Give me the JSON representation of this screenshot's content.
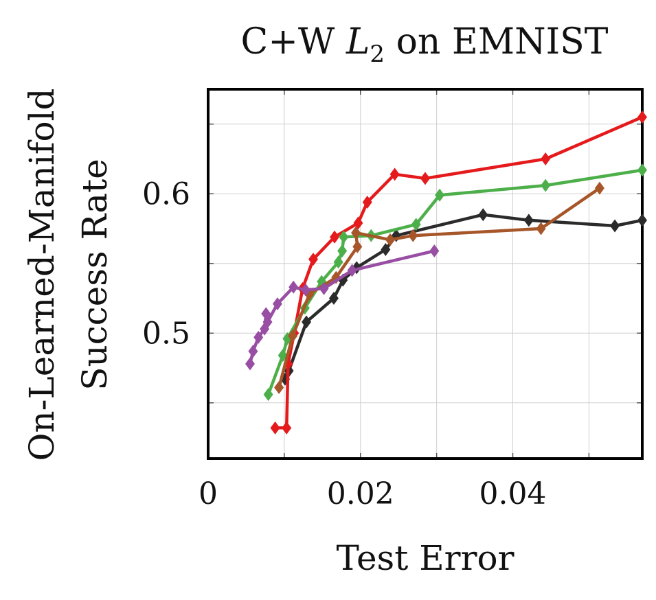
{
  "chart_data": {
    "type": "line",
    "title": "C+W L2 on EMNIST",
    "title_parts": {
      "prefix": "C+W ",
      "var": "L",
      "sub": "2",
      "suffix": " on EMNIST"
    },
    "xlabel": "Test Error",
    "ylabel_lines": [
      "On-Learned-Manifold",
      "Success Rate"
    ],
    "xlim": [
      0,
      0.057
    ],
    "ylim": [
      0.41,
      0.675
    ],
    "x_ticks": [
      {
        "value": 0,
        "label": "0"
      },
      {
        "value": 0.02,
        "label": "0.02"
      },
      {
        "value": 0.04,
        "label": "0.04"
      }
    ],
    "y_ticks": [
      {
        "value": 0.5,
        "label": "0.5"
      },
      {
        "value": 0.6,
        "label": "0.6"
      }
    ],
    "x_grid": [
      0.01,
      0.02,
      0.03,
      0.04,
      0.05
    ],
    "y_grid": [
      0.45,
      0.5,
      0.55,
      0.6,
      0.65
    ],
    "grid": true,
    "marker": "diamond",
    "series": [
      {
        "color": "#2b2b2b",
        "points": [
          [
            0.0101,
            0.467
          ],
          [
            0.0106,
            0.473
          ],
          [
            0.0129,
            0.508
          ],
          [
            0.0165,
            0.525
          ],
          [
            0.0177,
            0.538
          ],
          [
            0.0195,
            0.547
          ],
          [
            0.0233,
            0.56
          ],
          [
            0.0247,
            0.57
          ],
          [
            0.0361,
            0.585
          ],
          [
            0.0421,
            0.581
          ],
          [
            0.0534,
            0.577
          ],
          [
            0.057,
            0.581
          ]
        ]
      },
      {
        "color": "#e41a1c",
        "points": [
          [
            0.0088,
            0.432
          ],
          [
            0.0103,
            0.432
          ],
          [
            0.0105,
            0.478
          ],
          [
            0.0113,
            0.5
          ],
          [
            0.0124,
            0.532
          ],
          [
            0.0138,
            0.553
          ],
          [
            0.0166,
            0.569
          ],
          [
            0.0197,
            0.579
          ],
          [
            0.0209,
            0.594
          ],
          [
            0.0245,
            0.614
          ],
          [
            0.0285,
            0.611
          ],
          [
            0.0443,
            0.625
          ],
          [
            0.057,
            0.655
          ]
        ]
      },
      {
        "color": "#4daf4a",
        "points": [
          [
            0.0079,
            0.456
          ],
          [
            0.0098,
            0.484
          ],
          [
            0.0104,
            0.496
          ],
          [
            0.0127,
            0.518
          ],
          [
            0.0149,
            0.537
          ],
          [
            0.0171,
            0.551
          ],
          [
            0.0176,
            0.559
          ],
          [
            0.0178,
            0.569
          ],
          [
            0.0214,
            0.57
          ],
          [
            0.0273,
            0.578
          ],
          [
            0.0304,
            0.599
          ],
          [
            0.0443,
            0.606
          ],
          [
            0.057,
            0.617
          ]
        ]
      },
      {
        "color": "#a65628",
        "points": [
          [
            0.0093,
            0.461
          ],
          [
            0.0111,
            0.498
          ],
          [
            0.0133,
            0.528
          ],
          [
            0.0168,
            0.54
          ],
          [
            0.0196,
            0.562
          ],
          [
            0.0194,
            0.572
          ],
          [
            0.0239,
            0.567
          ],
          [
            0.0269,
            0.57
          ],
          [
            0.0437,
            0.575
          ],
          [
            0.0514,
            0.604
          ]
        ]
      },
      {
        "color": "#984ea3",
        "points": [
          [
            0.0055,
            0.478
          ],
          [
            0.0059,
            0.487
          ],
          [
            0.0066,
            0.497
          ],
          [
            0.0074,
            0.503
          ],
          [
            0.0076,
            0.514
          ],
          [
            0.0078,
            0.508
          ],
          [
            0.0091,
            0.521
          ],
          [
            0.0112,
            0.533
          ],
          [
            0.0128,
            0.531
          ],
          [
            0.0152,
            0.532
          ],
          [
            0.0189,
            0.545
          ],
          [
            0.0297,
            0.559
          ]
        ]
      }
    ]
  }
}
